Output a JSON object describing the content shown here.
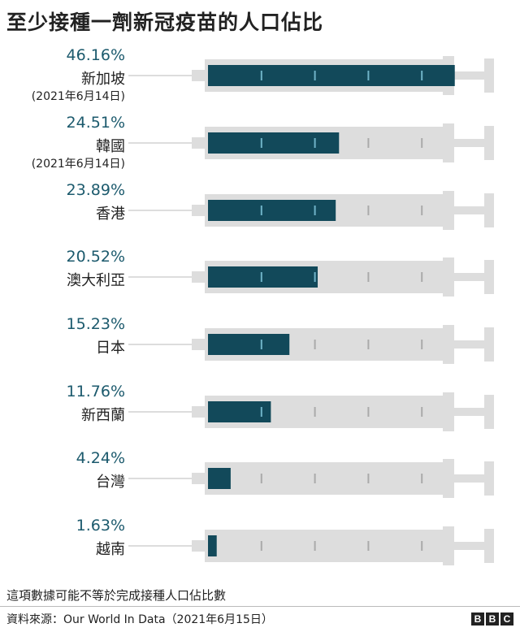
{
  "title": "至少接種一劑新冠疫苗的人口佔比",
  "chart_data": {
    "type": "bar",
    "title": "至少接種一劑新冠疫苗的人口佔比",
    "unit": "%",
    "xlim": [
      0,
      50
    ],
    "categories": [
      "新加坡",
      "韓國",
      "香港",
      "澳大利亞",
      "日本",
      "新西蘭",
      "台灣",
      "越南"
    ],
    "values": [
      46.16,
      24.51,
      23.89,
      20.52,
      15.23,
      11.76,
      4.24,
      1.63
    ],
    "rows": [
      {
        "name": "新加坡",
        "value": 46.16,
        "label": "46.16%",
        "note": "(2021年6月14日)"
      },
      {
        "name": "韓國",
        "value": 24.51,
        "label": "24.51%",
        "note": "(2021年6月14日)"
      },
      {
        "name": "香港",
        "value": 23.89,
        "label": "23.89%",
        "note": ""
      },
      {
        "name": "澳大利亞",
        "value": 20.52,
        "label": "20.52%",
        "note": ""
      },
      {
        "name": "日本",
        "value": 15.23,
        "label": "15.23%",
        "note": ""
      },
      {
        "name": "新西蘭",
        "value": 11.76,
        "label": "11.76%",
        "note": ""
      },
      {
        "name": "台灣",
        "value": 4.24,
        "label": "4.24%",
        "note": ""
      },
      {
        "name": "越南",
        "value": 1.63,
        "label": "1.63%",
        "note": ""
      }
    ],
    "tick_marks": [
      10,
      20,
      30,
      40
    ]
  },
  "colors": {
    "fill": "#12495a",
    "syringe": "#dddddd",
    "tick_on_fill": "#6fb3c8",
    "tick_on_empty": "#aaaaaa",
    "label": "#1c5a6d"
  },
  "footer": {
    "note": "這項數據可能不等於完成接種人口佔比數",
    "source": "資料來源：Our World In Data（2021年6月15日）",
    "logo": [
      "B",
      "B",
      "C"
    ]
  }
}
